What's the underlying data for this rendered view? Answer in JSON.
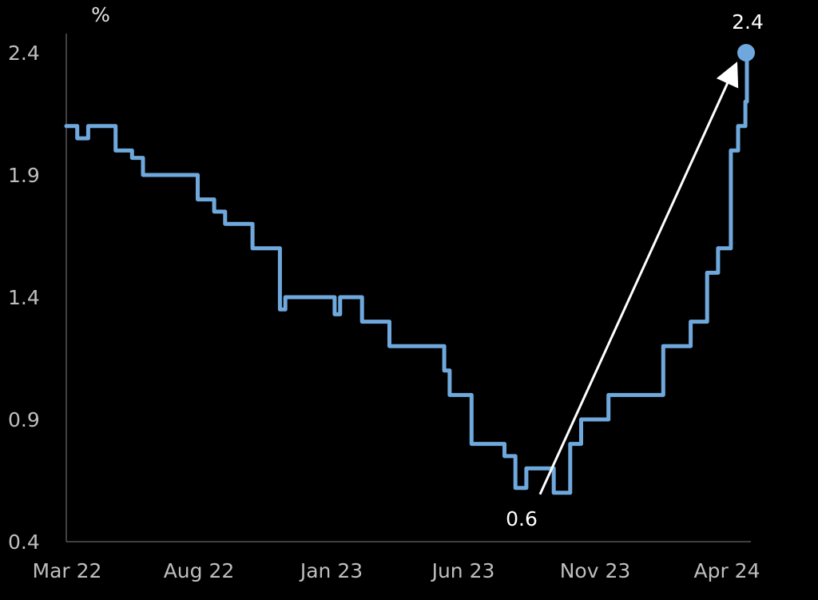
{
  "chart_data": {
    "type": "line",
    "title": "",
    "unit_label": "%",
    "xlabel": "",
    "ylabel": "",
    "ylim": [
      0.4,
      2.4
    ],
    "yticks": [
      "0.4",
      "0.9",
      "1.4",
      "1.9",
      "2.4"
    ],
    "xticks": [
      "Mar 22",
      "Aug 22",
      "Jan 23",
      "Jun 23",
      "Nov 23",
      "Apr 24"
    ],
    "xlim": [
      "2022-03",
      "2024-04"
    ],
    "grid": false,
    "legend": "none",
    "line_color": "#6fa8dc",
    "series": [
      {
        "points": [
          [
            "2022-03",
            2.1
          ],
          [
            "2022-03",
            2.05
          ],
          [
            "2022-03",
            2.1
          ],
          [
            "2022-04",
            2.1
          ],
          [
            "2022-04",
            2.0
          ],
          [
            "2022-05",
            2.0
          ],
          [
            "2022-05",
            1.97
          ],
          [
            "2022-05",
            1.9
          ],
          [
            "2022-07",
            1.9
          ],
          [
            "2022-07",
            1.8
          ],
          [
            "2022-08",
            1.8
          ],
          [
            "2022-08",
            1.75
          ],
          [
            "2022-08",
            1.7
          ],
          [
            "2022-09",
            1.7
          ],
          [
            "2022-09",
            1.6
          ],
          [
            "2022-10",
            1.6
          ],
          [
            "2022-10",
            1.35
          ],
          [
            "2022-11",
            1.4
          ],
          [
            "2022-12",
            1.4
          ],
          [
            "2022-12",
            1.33
          ],
          [
            "2023-01",
            1.4
          ],
          [
            "2023-01",
            1.3
          ],
          [
            "2023-02",
            1.3
          ],
          [
            "2023-02",
            1.2
          ],
          [
            "2023-04",
            1.2
          ],
          [
            "2023-04",
            1.1
          ],
          [
            "2023-05",
            1.0
          ],
          [
            "2023-05",
            0.8
          ],
          [
            "2023-06",
            0.8
          ],
          [
            "2023-07",
            0.75
          ],
          [
            "2023-07",
            0.62
          ],
          [
            "2023-07",
            0.7
          ],
          [
            "2023-08",
            0.7
          ],
          [
            "2023-08",
            0.6
          ],
          [
            "2023-09",
            0.6
          ],
          [
            "2023-09",
            0.8
          ],
          [
            "2023-09",
            0.9
          ],
          [
            "2023-10",
            0.9
          ],
          [
            "2023-10",
            1.0
          ],
          [
            "2023-12",
            1.0
          ],
          [
            "2023-12",
            1.2
          ],
          [
            "2024-01",
            1.2
          ],
          [
            "2024-01",
            1.3
          ],
          [
            "2024-02",
            1.3
          ],
          [
            "2024-02",
            1.5
          ],
          [
            "2024-02",
            1.6
          ],
          [
            "2024-03",
            1.6
          ],
          [
            "2024-03",
            2.0
          ],
          [
            "2024-03",
            2.1
          ],
          [
            "2024-03",
            2.2
          ],
          [
            "2024-04",
            2.2
          ],
          [
            "2024-04",
            2.4
          ]
        ]
      }
    ],
    "annotations": [
      {
        "text": "0.6",
        "arrow_from": [
          "2023-09",
          0.6
        ],
        "arrow_to": [
          "2024-04",
          2.4
        ]
      },
      {
        "text": "2.4",
        "at": [
          "2024-04",
          2.4
        ]
      }
    ]
  }
}
